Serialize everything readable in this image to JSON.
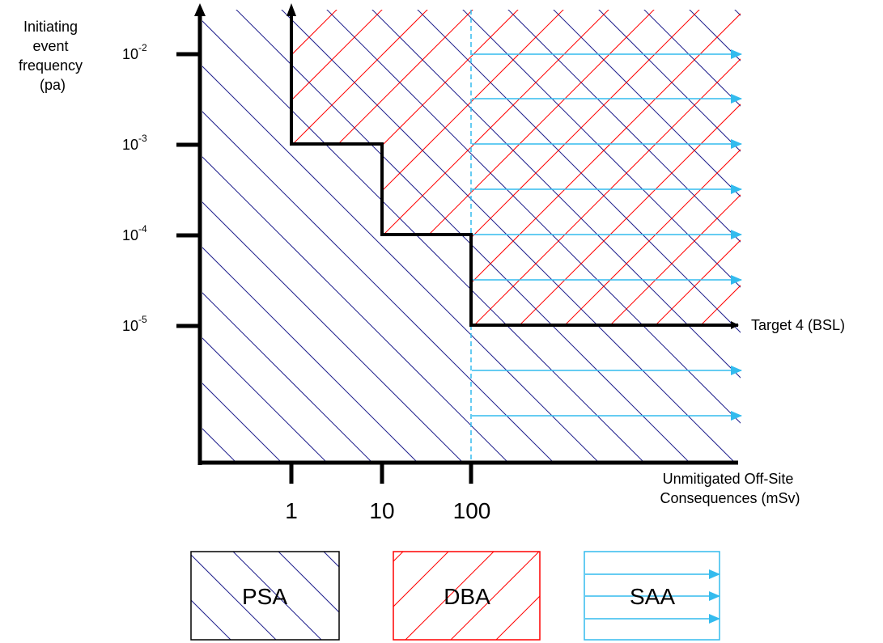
{
  "y_axis": {
    "title_lines": [
      "Initiating",
      "event",
      "frequency",
      "(pa)"
    ],
    "ticks": [
      {
        "base": "10",
        "exp": "-2"
      },
      {
        "base": "10",
        "exp": "-3"
      },
      {
        "base": "10",
        "exp": "-4"
      },
      {
        "base": "10",
        "exp": "-5"
      }
    ]
  },
  "x_axis": {
    "title_lines": [
      "Unmitigated Off-Site",
      "Consequences (mSv)"
    ],
    "ticks": [
      "1",
      "10",
      "100"
    ]
  },
  "target_label": "Target 4 (BSL)",
  "legend": [
    {
      "key": "psa",
      "label": "PSA",
      "color": "#1f1f8c"
    },
    {
      "key": "dba",
      "label": "DBA",
      "color": "#ff0000"
    },
    {
      "key": "saa",
      "label": "SAA",
      "color": "#33bbee"
    }
  ],
  "colors": {
    "axis": "#000000",
    "psa_hatch": "#1f1f8c",
    "dba_hatch": "#ff0000",
    "saa_arrow": "#33bbee"
  }
}
